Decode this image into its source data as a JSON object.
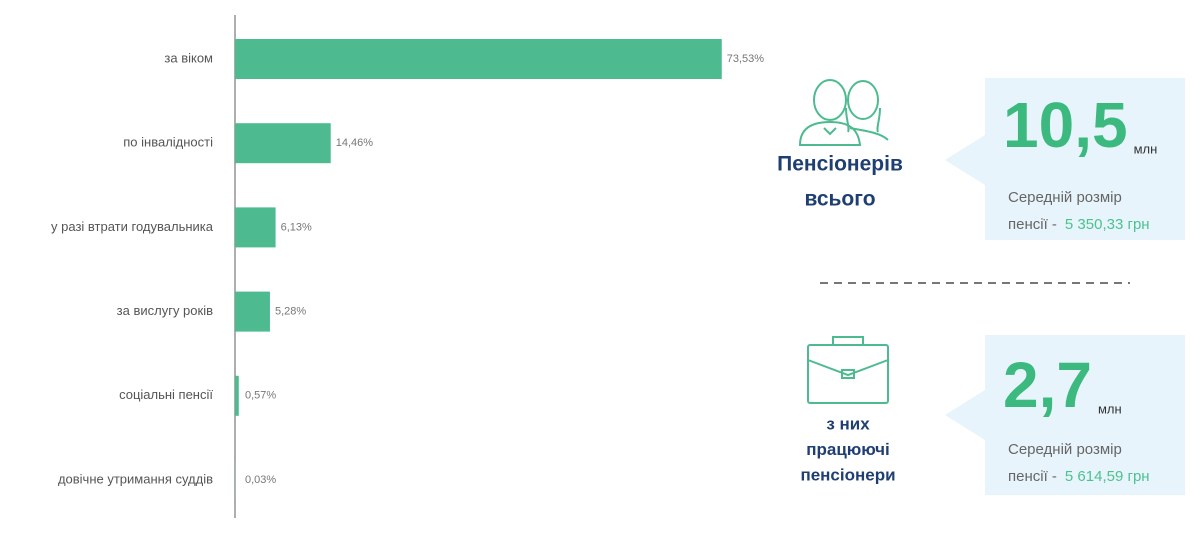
{
  "chart_data": {
    "type": "bar",
    "orientation": "horizontal",
    "categories": [
      "за віком",
      "по інвалідності",
      "у разі втрати годувальника",
      "за вислугу років",
      "соціальні пенсії",
      "довічне утримання суддів"
    ],
    "values": [
      73.53,
      14.46,
      6.13,
      5.28,
      0.57,
      0.03
    ],
    "value_labels": [
      "73,53%",
      "14,46%",
      "6,13%",
      "5,28%",
      "0,57%",
      "0,03%"
    ],
    "color": "#4dbb8f"
  },
  "stats": [
    {
      "label_lines": [
        "Пенсіонерів",
        "всього"
      ],
      "value": "10,5",
      "unit": "млн",
      "note_lines": [
        "Середній розмір",
        "пенсії -"
      ],
      "amount": "5 350,33 грн"
    },
    {
      "label_lines": [
        "з них",
        "працюючі",
        "пенсіонери"
      ],
      "value": "2,7",
      "unit": "млн",
      "note_lines": [
        "Середній розмір",
        "пенсії -"
      ],
      "amount": "5 614,59 грн"
    }
  ]
}
